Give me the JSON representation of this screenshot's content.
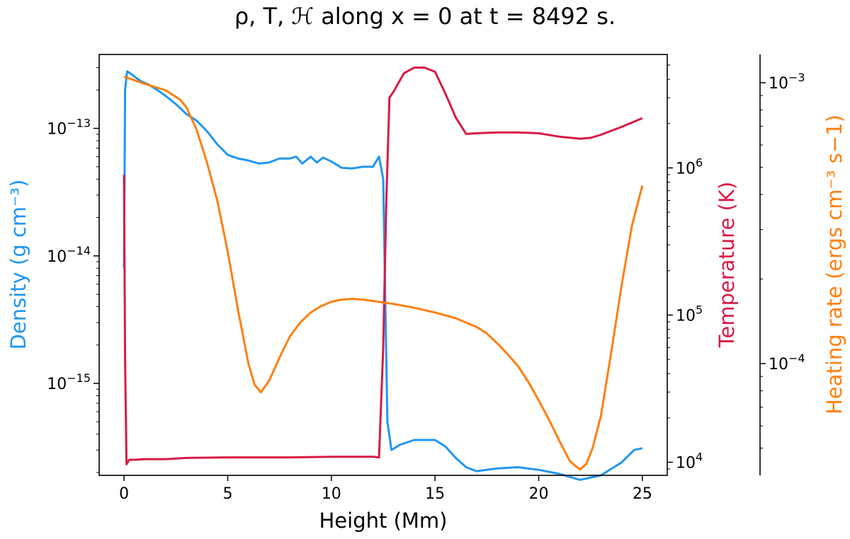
{
  "chart_data": {
    "type": "line",
    "title": "ρ, T, ℋ along x = 0 at t = 8492 s.",
    "xlabel": "Height (Mm)",
    "xlim": [
      -1.2,
      26.2
    ],
    "xticks": [
      "0",
      "5",
      "10",
      "15",
      "20",
      "25"
    ],
    "axes": {
      "density": {
        "label": "Density (g cm⁻³)",
        "scale": "log",
        "color": "#2196f3",
        "ylim": [
          1.9e-16,
          3.8e-13
        ],
        "ticks": [
          {
            "value": 1e-13,
            "label": "10",
            "exp": "−13"
          },
          {
            "value": 1e-14,
            "label": "10",
            "exp": "−14"
          },
          {
            "value": 1e-15,
            "label": "10",
            "exp": "−15"
          }
        ]
      },
      "temperature": {
        "label": "Temperature (K)",
        "scale": "log",
        "color": "#d81b45",
        "ylim": [
          8150,
          5900000
        ],
        "ticks": [
          {
            "value": 1000000.0,
            "label": "10",
            "exp": "6"
          },
          {
            "value": 100000.0,
            "label": "10",
            "exp": "5"
          },
          {
            "value": 10000.0,
            "label": "10",
            "exp": "4"
          }
        ]
      },
      "heating": {
        "label": "Heating rate (ergs cm⁻³ s−1)",
        "scale": "log",
        "color": "#ff7f0e",
        "ylim": [
          4e-05,
          0.00126
        ],
        "ticks": [
          {
            "value": 0.001,
            "label": "10",
            "exp": "−3"
          },
          {
            "value": 0.0001,
            "label": "10",
            "exp": "−4"
          }
        ]
      }
    },
    "series": [
      {
        "axis": "density",
        "color": "#2196f3",
        "x": [
          0,
          0.05,
          0.15,
          0.3,
          0.5,
          0.8,
          1.2,
          1.6,
          2.0,
          2.5,
          3.0,
          3.5,
          4.0,
          4.5,
          5.0,
          5.5,
          6.0,
          6.5,
          7.0,
          7.5,
          8.0,
          8.3,
          8.6,
          9.0,
          9.3,
          9.6,
          10.0,
          10.5,
          11.0,
          11.5,
          12.0,
          12.3,
          12.5,
          12.7,
          12.9,
          13.3,
          14.0,
          15.0,
          15.5,
          16.0,
          16.5,
          17.0,
          18.0,
          19.0,
          20.0,
          21.0,
          22.0,
          23.0,
          24.0,
          24.6,
          25.0
        ],
        "y": [
          8e-15,
          2e-13,
          2.8e-13,
          2.7e-13,
          2.55e-13,
          2.35e-13,
          2.2e-13,
          2e-13,
          1.8e-13,
          1.55e-13,
          1.3e-13,
          1.15e-13,
          9.5e-14,
          7.5e-14,
          6.2e-14,
          5.8e-14,
          5.6e-14,
          5.3e-14,
          5.4e-14,
          5.8e-14,
          5.8e-14,
          6e-14,
          5.3e-14,
          6e-14,
          5.4e-14,
          5.9e-14,
          5.5e-14,
          4.9e-14,
          4.85e-14,
          5e-14,
          5e-14,
          6e-14,
          4e-14,
          5e-16,
          3e-16,
          3.3e-16,
          3.6e-16,
          3.6e-16,
          3.2e-16,
          2.6e-16,
          2.2e-16,
          2.05e-16,
          2.15e-16,
          2.2e-16,
          2.1e-16,
          1.95e-16,
          1.75e-16,
          1.9e-16,
          2.4e-16,
          3e-16,
          3.1e-16
        ]
      },
      {
        "axis": "temperature",
        "color": "#d81b45",
        "x": [
          0,
          0.05,
          0.12,
          0.25,
          0.5,
          1.0,
          2.0,
          3.0,
          5.0,
          8.0,
          10.0,
          12.0,
          12.3,
          12.5,
          12.65,
          12.8,
          13.0,
          13.5,
          14.0,
          14.5,
          15.0,
          15.5,
          16.0,
          16.5,
          17.0,
          18.0,
          19.0,
          20.0,
          21.0,
          22.0,
          22.5,
          23.0,
          24.0,
          25.0
        ],
        "y": [
          900000,
          50000,
          9700,
          10400,
          10400,
          10500,
          10500,
          10700,
          10800,
          10800,
          10900,
          10900,
          10800,
          60000,
          600000,
          3000000,
          3300000,
          4400000,
          4800000,
          4800000,
          4500000,
          3200000,
          2200000,
          1700000,
          1720000,
          1740000,
          1740000,
          1720000,
          1630000,
          1580000,
          1600000,
          1680000,
          1900000,
          2180000
        ]
      },
      {
        "axis": "heating",
        "color": "#ff7f0e",
        "x": [
          0,
          0.5,
          1.0,
          2.0,
          2.7,
          3.0,
          3.5,
          4.0,
          4.5,
          5.0,
          5.5,
          6.0,
          6.3,
          6.6,
          7.0,
          7.5,
          8.0,
          8.5,
          9.0,
          9.5,
          10.0,
          10.5,
          11.0,
          11.5,
          12.0,
          13.0,
          14.0,
          15.0,
          16.0,
          17.0,
          17.5,
          18.0,
          18.5,
          19.0,
          19.5,
          20.0,
          20.5,
          21.0,
          21.5,
          21.8,
          22.0,
          22.3,
          22.6,
          23.0,
          23.5,
          24.0,
          24.5,
          25.0
        ],
        "y": [
          0.00105,
          0.00102,
          0.00099,
          0.00094,
          0.00087,
          0.00082,
          0.00068,
          0.00052,
          0.00038,
          0.00025,
          0.000155,
          0.0001,
          8.4e-05,
          7.9e-05,
          8.7e-05,
          0.000105,
          0.000125,
          0.00014,
          0.000152,
          0.00016,
          0.000166,
          0.000169,
          0.00017,
          0.000169,
          0.000167,
          0.000163,
          0.000158,
          0.000152,
          0.000145,
          0.000135,
          0.000128,
          0.000118,
          0.000108,
          9.8e-05,
          8.6e-05,
          7.4e-05,
          6.3e-05,
          5.3e-05,
          4.5e-05,
          4.3e-05,
          4.2e-05,
          4.4e-05,
          5e-05,
          6.5e-05,
          0.00011,
          0.00019,
          0.00031,
          0.00043
        ]
      }
    ]
  }
}
